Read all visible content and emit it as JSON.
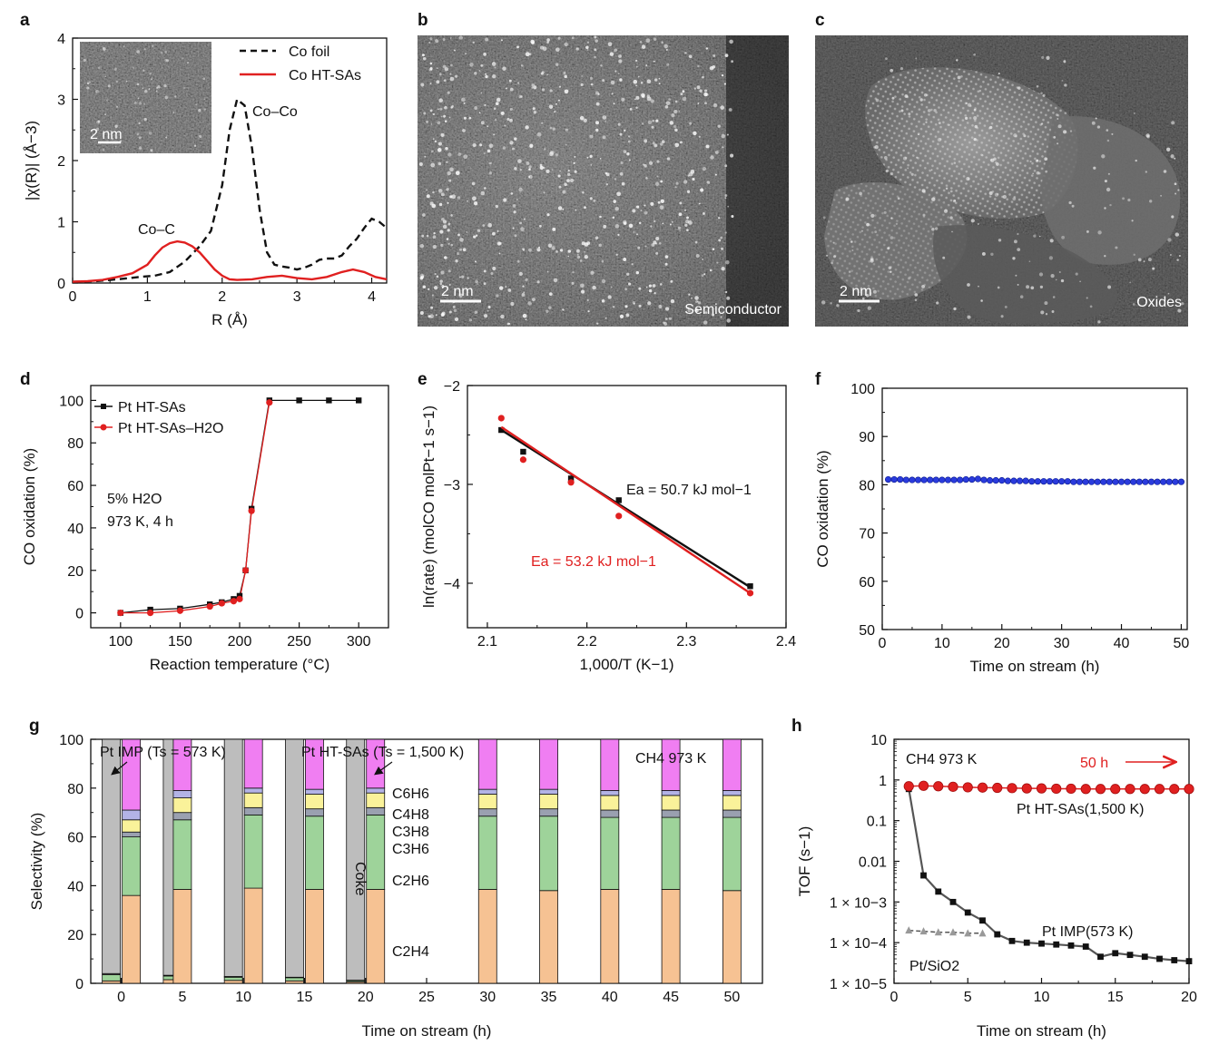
{
  "panel_labels": [
    "a",
    "b",
    "c",
    "d",
    "e",
    "f",
    "g",
    "h"
  ],
  "images": {
    "b": {
      "scale": "2 nm",
      "caption": "Semiconductor"
    },
    "c": {
      "scale": "2 nm",
      "caption": "Oxides"
    },
    "a_inset": {
      "scale": "2 nm"
    }
  },
  "colors": {
    "black": "#111111",
    "red": "#e02020",
    "blue": "#2a3bdc",
    "gray": "#bdbdbd",
    "pink": "#f07ef2",
    "lavender": "#b3b3e6",
    "yellow": "#faf29a",
    "green": "#9ed39a",
    "orange": "#f6c293"
  },
  "chart_data": [
    {
      "id": "a",
      "type": "line",
      "xlabel": "R (Å)",
      "ylabel": "|χ(R)| (Å−3)",
      "xlim": [
        0,
        4.2
      ],
      "ylim": [
        0,
        4
      ],
      "xticks": [
        "0",
        "1",
        "2",
        "3",
        "4"
      ],
      "yticks": [
        "0",
        "1",
        "2",
        "3",
        "4"
      ],
      "annotations": [
        "Co–Co",
        "Co–C"
      ],
      "series": [
        {
          "name": "Co foil",
          "style": "dashed",
          "color": "#111111",
          "x": [
            0,
            0.3,
            0.6,
            0.9,
            1.1,
            1.3,
            1.5,
            1.7,
            1.85,
            2.0,
            2.1,
            2.2,
            2.3,
            2.4,
            2.5,
            2.6,
            2.7,
            2.8,
            2.9,
            3.0,
            3.1,
            3.2,
            3.3,
            3.4,
            3.5,
            3.6,
            3.7,
            3.8,
            3.9,
            4.0,
            4.1,
            4.2
          ],
          "y": [
            0.02,
            0.03,
            0.06,
            0.1,
            0.12,
            0.18,
            0.35,
            0.6,
            0.85,
            1.6,
            2.5,
            3.0,
            2.9,
            2.2,
            1.2,
            0.5,
            0.3,
            0.27,
            0.25,
            0.22,
            0.25,
            0.3,
            0.38,
            0.4,
            0.4,
            0.45,
            0.6,
            0.72,
            0.9,
            1.05,
            1.0,
            0.9
          ]
        },
        {
          "name": "Co HT-SAs",
          "style": "solid",
          "color": "#e02020",
          "x": [
            0,
            0.2,
            0.4,
            0.6,
            0.8,
            1.0,
            1.1,
            1.2,
            1.3,
            1.4,
            1.5,
            1.6,
            1.7,
            1.8,
            1.9,
            2.0,
            2.1,
            2.2,
            2.4,
            2.6,
            2.8,
            3.0,
            3.2,
            3.4,
            3.6,
            3.75,
            3.9,
            4.05,
            4.2
          ],
          "y": [
            0.02,
            0.03,
            0.05,
            0.1,
            0.16,
            0.3,
            0.45,
            0.58,
            0.65,
            0.68,
            0.66,
            0.6,
            0.5,
            0.36,
            0.22,
            0.12,
            0.06,
            0.05,
            0.06,
            0.1,
            0.12,
            0.08,
            0.06,
            0.1,
            0.18,
            0.22,
            0.18,
            0.1,
            0.06
          ]
        }
      ]
    },
    {
      "id": "d",
      "type": "line",
      "xlabel": "Reaction temperature (°C)",
      "ylabel": "CO oxidation (%)",
      "xlim": [
        75,
        325
      ],
      "ylim": [
        -7,
        107
      ],
      "xticks": [
        "100",
        "150",
        "200",
        "250",
        "300"
      ],
      "yticks": [
        "0",
        "20",
        "40",
        "60",
        "80",
        "100"
      ],
      "annotations": [
        "5%  H2O",
        "973 K, 4 h"
      ],
      "series": [
        {
          "name": "Pt HT-SAs",
          "marker": "square",
          "color": "#111111",
          "x": [
            100,
            125,
            150,
            175,
            185,
            195,
            200,
            205,
            210,
            225,
            250,
            275,
            300
          ],
          "y": [
            0,
            1.5,
            2,
            4,
            5,
            6.5,
            8,
            20,
            49,
            100,
            100,
            100,
            100
          ]
        },
        {
          "name": "Pt HT-SAs–H2O",
          "marker": "circle",
          "color": "#e02020",
          "x": [
            100,
            125,
            150,
            175,
            185,
            195,
            200,
            205,
            210,
            225
          ],
          "y": [
            0,
            0,
            1,
            3,
            4.5,
            5.5,
            6.5,
            20,
            48,
            99
          ]
        }
      ]
    },
    {
      "id": "e",
      "type": "scatter",
      "xlabel": "1,000/T (K−1)",
      "ylabel": "ln(rate) (molCO molPt−1 s−1)",
      "xlim": [
        2.08,
        2.4
      ],
      "ylim": [
        -4.45,
        -2.0
      ],
      "xticks": [
        "2.1",
        "2.2",
        "2.3",
        "2.4"
      ],
      "yticks": [
        "−2",
        "−3",
        "−4"
      ],
      "annotations": [
        "Ea = 50.7 kJ mol−1",
        "Ea = 53.2 kJ mol−1"
      ],
      "series": [
        {
          "name": "black",
          "marker": "square",
          "color": "#111111",
          "x": [
            2.114,
            2.136,
            2.184,
            2.232,
            2.364
          ],
          "y": [
            -2.45,
            -2.67,
            -2.94,
            -3.16,
            -4.03
          ],
          "fit": {
            "x": [
              2.114,
              2.364
            ],
            "y": [
              -2.45,
              -4.04
            ]
          }
        },
        {
          "name": "red",
          "marker": "circle",
          "color": "#e02020",
          "x": [
            2.114,
            2.136,
            2.184,
            2.232,
            2.364
          ],
          "y": [
            -2.33,
            -2.75,
            -2.98,
            -3.32,
            -4.1
          ],
          "fit": {
            "x": [
              2.114,
              2.364
            ],
            "y": [
              -2.42,
              -4.1
            ]
          }
        }
      ]
    },
    {
      "id": "f",
      "type": "scatter",
      "xlabel": "Time on stream (h)",
      "ylabel": "CO oxidation (%)",
      "xlim": [
        0,
        51
      ],
      "ylim": [
        50,
        100
      ],
      "xticks": [
        "0",
        "10",
        "20",
        "30",
        "40",
        "50"
      ],
      "yticks": [
        "50",
        "60",
        "70",
        "80",
        "90",
        "100"
      ],
      "series": [
        {
          "name": "Pt HT-SAs",
          "marker": "circle",
          "color": "#2a3bdc",
          "x": [
            1,
            2,
            3,
            4,
            5,
            6,
            7,
            8,
            9,
            10,
            11,
            12,
            13,
            14,
            15,
            16,
            17,
            18,
            19,
            20,
            21,
            22,
            23,
            24,
            25,
            26,
            27,
            28,
            29,
            30,
            31,
            32,
            33,
            34,
            35,
            36,
            37,
            38,
            39,
            40,
            41,
            42,
            43,
            44,
            45,
            46,
            47,
            48,
            49,
            50
          ],
          "y": [
            81.1,
            81.1,
            81.1,
            81.0,
            81.0,
            81.0,
            81.0,
            81.0,
            81.0,
            81.0,
            81.0,
            81.0,
            81.0,
            81.1,
            81.1,
            81.2,
            81.0,
            80.9,
            80.9,
            80.9,
            80.8,
            80.8,
            80.8,
            80.8,
            80.7,
            80.7,
            80.7,
            80.7,
            80.7,
            80.7,
            80.7,
            80.6,
            80.6,
            80.6,
            80.6,
            80.6,
            80.6,
            80.6,
            80.6,
            80.6,
            80.6,
            80.6,
            80.6,
            80.6,
            80.6,
            80.6,
            80.6,
            80.6,
            80.6,
            80.6
          ]
        }
      ]
    },
    {
      "id": "g",
      "type": "bar",
      "xlabel": "Time on stream (h)",
      "ylabel": "Selectivity (%)",
      "ylim": [
        0,
        100
      ],
      "yticks": [
        "0",
        "20",
        "40",
        "60",
        "80",
        "100"
      ],
      "categories": [
        "0",
        "5",
        "10",
        "15",
        "20",
        "25",
        "30",
        "35",
        "40",
        "45",
        "50"
      ],
      "title_impl": "Pt IMP (Ts = 573 K)",
      "title_ht": "Pt HT-SAs (Ts = 1,500 K)",
      "condition": "CH4 973 K",
      "stack_order": [
        "C2H4",
        "C2H6",
        "C3H6",
        "C3H8",
        "C4H8",
        "C6H6"
      ],
      "stack_labels": [
        "C6H6",
        "C4H8",
        "C3H8",
        "C3H6",
        "C2H6",
        "C2H4",
        "Coke"
      ],
      "imp_bars": [
        {
          "time": "0",
          "C2H4": 1,
          "C2H6": 2.5,
          "C3H6": 0.5,
          "coke": 96
        },
        {
          "time": "5",
          "C2H4": 1.5,
          "C2H6": 1.5,
          "C3H6": 0.3,
          "coke": 96.7
        },
        {
          "time": "10",
          "C2H4": 1.2,
          "C2H6": 1.3,
          "C3H6": 0.3,
          "coke": 97.2
        },
        {
          "time": "15",
          "C2H4": 1,
          "C2H6": 1.3,
          "C3H6": 0.2,
          "coke": 97.5
        },
        {
          "time": "20",
          "C2H4": 0.6,
          "C2H6": 0.5,
          "C3H6": 0.2,
          "coke": 98.7
        }
      ],
      "ht_bars": [
        {
          "time": "0",
          "C2H4": 36,
          "C2H6": 24,
          "C3H6": 2,
          "C3H8": 5,
          "C4H8": 4,
          "C6H6": 29
        },
        {
          "time": "5",
          "C2H4": 38.5,
          "C2H6": 28.5,
          "C3H6": 3,
          "C3H8": 6,
          "C4H8": 3,
          "C6H6": 21
        },
        {
          "time": "10",
          "C2H4": 39,
          "C2H6": 30,
          "C3H6": 3,
          "C3H8": 6,
          "C4H8": 2,
          "C6H6": 20
        },
        {
          "time": "15",
          "C2H4": 38.5,
          "C2H6": 30,
          "C3H6": 3,
          "C3H8": 6,
          "C4H8": 2,
          "C6H6": 20.5
        },
        {
          "time": "20",
          "C2H4": 38.5,
          "C2H6": 30.5,
          "C3H6": 3,
          "C3H8": 6,
          "C4H8": 2,
          "C6H6": 20
        },
        {
          "time": "30",
          "C2H4": 38.5,
          "C2H6": 30,
          "C3H6": 3,
          "C3H8": 6,
          "C4H8": 2,
          "C6H6": 20.5
        },
        {
          "time": "35",
          "C2H4": 38,
          "C2H6": 30.5,
          "C3H6": 3,
          "C3H8": 6,
          "C4H8": 2,
          "C6H6": 20.5
        },
        {
          "time": "40",
          "C2H4": 38.5,
          "C2H6": 29.5,
          "C3H6": 3,
          "C3H8": 6,
          "C4H8": 2,
          "C6H6": 21
        },
        {
          "time": "45",
          "C2H4": 38.5,
          "C2H6": 29.5,
          "C3H6": 3,
          "C3H8": 6,
          "C4H8": 2,
          "C6H6": 21
        },
        {
          "time": "50",
          "C2H4": 38,
          "C2H6": 30,
          "C3H6": 3,
          "C3H8": 6,
          "C4H8": 2,
          "C6H6": 21
        }
      ]
    },
    {
      "id": "h",
      "type": "line",
      "yscale": "log",
      "xlabel": "Time on stream (h)",
      "ylabel": "TOF (s−1)",
      "xlim": [
        0,
        20
      ],
      "ylim_log10": [
        -5,
        1
      ],
      "xticks": [
        "0",
        "5",
        "10",
        "15",
        "20"
      ],
      "yticks": [
        "10",
        "1",
        "0.1",
        "0.01",
        "1 × 10−3",
        "1 × 10−4",
        "1 × 10−5"
      ],
      "condition": "CH4 973 K",
      "arrow_label": "50 h",
      "series": [
        {
          "name": "Pt HT-SAs(1,500 K)",
          "marker": "circle",
          "color": "#e02020",
          "x": [
            1,
            2,
            3,
            4,
            5,
            6,
            7,
            8,
            9,
            10,
            11,
            12,
            13,
            14,
            15,
            16,
            17,
            18,
            19,
            20
          ],
          "y": [
            0.7,
            0.72,
            0.7,
            0.68,
            0.66,
            0.65,
            0.64,
            0.63,
            0.62,
            0.62,
            0.61,
            0.61,
            0.6,
            0.6,
            0.6,
            0.6,
            0.6,
            0.6,
            0.6,
            0.6
          ]
        },
        {
          "name": "Pt IMP(573 K)",
          "marker": "square",
          "color": "#111111",
          "x": [
            1,
            2,
            3,
            4,
            5,
            6,
            7,
            8,
            9,
            10,
            11,
            12,
            13,
            14,
            15,
            16,
            17,
            18,
            19,
            20
          ],
          "y": [
            0.6,
            0.0045,
            0.0018,
            0.001,
            0.00055,
            0.00035,
            0.00016,
            0.00011,
            0.0001,
            9.5e-05,
            9e-05,
            8.5e-05,
            8e-05,
            4.5e-05,
            5.5e-05,
            5e-05,
            4.5e-05,
            4e-05,
            3.7e-05,
            3.5e-05
          ]
        },
        {
          "name": "Pt/SiO2",
          "marker": "triangle",
          "color": "#999999",
          "x": [
            1,
            2,
            3,
            4,
            5,
            6
          ],
          "y": [
            0.0002,
            0.00019,
            0.00018,
            0.00018,
            0.00017,
            0.00017
          ]
        }
      ]
    }
  ]
}
